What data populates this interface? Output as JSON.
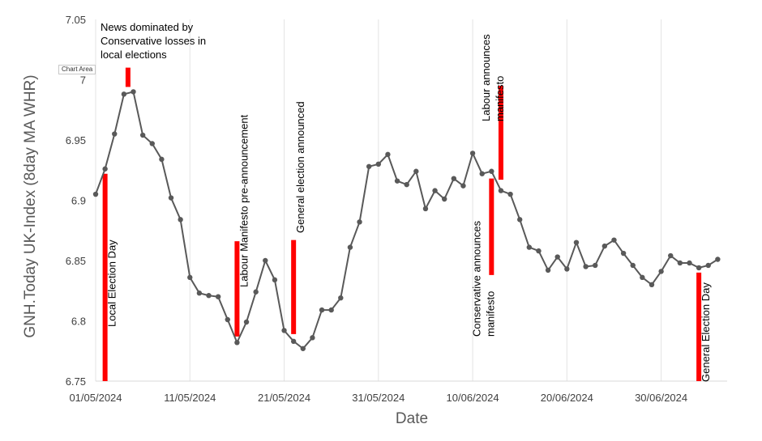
{
  "chart_data": {
    "type": "line",
    "title": "",
    "xlabel": "Date",
    "ylabel": "GNH.Today UK-Index (8day MA WHR)",
    "ylim": [
      6.75,
      7.05
    ],
    "yticks": [
      "6.75",
      "6.8",
      "6.85",
      "6.9",
      "6.95",
      "7",
      "7.05"
    ],
    "xlim": [
      "2024-05-01",
      "2024-07-07"
    ],
    "xticks": [
      "01/05/2024",
      "11/05/2024",
      "21/05/2024",
      "31/05/2024",
      "10/06/2024",
      "20/06/2024",
      "30/06/2024"
    ],
    "grid": "vertical",
    "legend": "none",
    "line_color": "#595959",
    "marker_color": "#595959",
    "highlight_color": "#ff0000",
    "series": [
      {
        "x": [
          "2024-05-01",
          "2024-05-02",
          "2024-05-03",
          "2024-05-04",
          "2024-05-05",
          "2024-05-06",
          "2024-05-07",
          "2024-05-08",
          "2024-05-09",
          "2024-05-10",
          "2024-05-11",
          "2024-05-12",
          "2024-05-13",
          "2024-05-14",
          "2024-05-15",
          "2024-05-16",
          "2024-05-17",
          "2024-05-18",
          "2024-05-19",
          "2024-05-20",
          "2024-05-21",
          "2024-05-22",
          "2024-05-23",
          "2024-05-24",
          "2024-05-25",
          "2024-05-26",
          "2024-05-27",
          "2024-05-28",
          "2024-05-29",
          "2024-05-30",
          "2024-05-31",
          "2024-06-01",
          "2024-06-02",
          "2024-06-03",
          "2024-06-04",
          "2024-06-05",
          "2024-06-06",
          "2024-06-07",
          "2024-06-08",
          "2024-06-09",
          "2024-06-10",
          "2024-06-11",
          "2024-06-12",
          "2024-06-13",
          "2024-06-14",
          "2024-06-15",
          "2024-06-16",
          "2024-06-17",
          "2024-06-18",
          "2024-06-19",
          "2024-06-20",
          "2024-06-21",
          "2024-06-22",
          "2024-06-23",
          "2024-06-24",
          "2024-06-25",
          "2024-06-26",
          "2024-06-27",
          "2024-06-28",
          "2024-06-29",
          "2024-06-30",
          "2024-07-01",
          "2024-07-02",
          "2024-07-03",
          "2024-07-04",
          "2024-07-05",
          "2024-07-06"
        ],
        "values": [
          6.905,
          6.926,
          6.955,
          6.988,
          6.99,
          6.954,
          6.947,
          6.934,
          6.902,
          6.884,
          6.836,
          6.823,
          6.821,
          6.82,
          6.801,
          6.782,
          6.799,
          6.824,
          6.85,
          6.834,
          6.792,
          6.783,
          6.777,
          6.786,
          6.809,
          6.809,
          6.819,
          6.861,
          6.882,
          6.928,
          6.93,
          6.938,
          6.916,
          6.913,
          6.924,
          6.893,
          6.908,
          6.901,
          6.918,
          6.912,
          6.939,
          6.922,
          6.924,
          6.908,
          6.905,
          6.884,
          6.861,
          6.858,
          6.842,
          6.853,
          6.843,
          6.865,
          6.845,
          6.846,
          6.862,
          6.867,
          6.856,
          6.846,
          6.836,
          6.83,
          6.841,
          6.854,
          6.848,
          6.848,
          6.844,
          6.846,
          6.851
        ]
      }
    ],
    "markers": [
      {
        "x": "2024-05-02",
        "y_from": 6.75,
        "y_to": 6.922,
        "label": "Local Election Day",
        "orientation": "vertical"
      },
      {
        "x": "2024-05-04",
        "y_from": 6.994,
        "y_to": 7.01,
        "label": "News dominated by Conservative losses in local elections",
        "orientation": "horizontal"
      },
      {
        "x": "2024-05-16",
        "y_from": 6.787,
        "y_to": 6.866,
        "label": "Labour Manifesto pre-announcement",
        "orientation": "vertical"
      },
      {
        "x": "2024-05-22",
        "y_from": 6.789,
        "y_to": 6.867,
        "label": "General election announced",
        "orientation": "vertical"
      },
      {
        "x": "2024-06-12",
        "y_from": 6.838,
        "y_to": 6.918,
        "label": "Conservative announces manifesto",
        "orientation": "vertical"
      },
      {
        "x": "2024-06-13",
        "y_from": 6.917,
        "y_to": 6.995,
        "label": "Labour announces manifesto",
        "orientation": "vertical"
      },
      {
        "x": "2024-07-04",
        "y_from": 6.75,
        "y_to": 6.84,
        "label": "General Election Day",
        "orientation": "vertical"
      }
    ]
  },
  "ui": {
    "chart_area_tooltip": "Chart Area"
  }
}
